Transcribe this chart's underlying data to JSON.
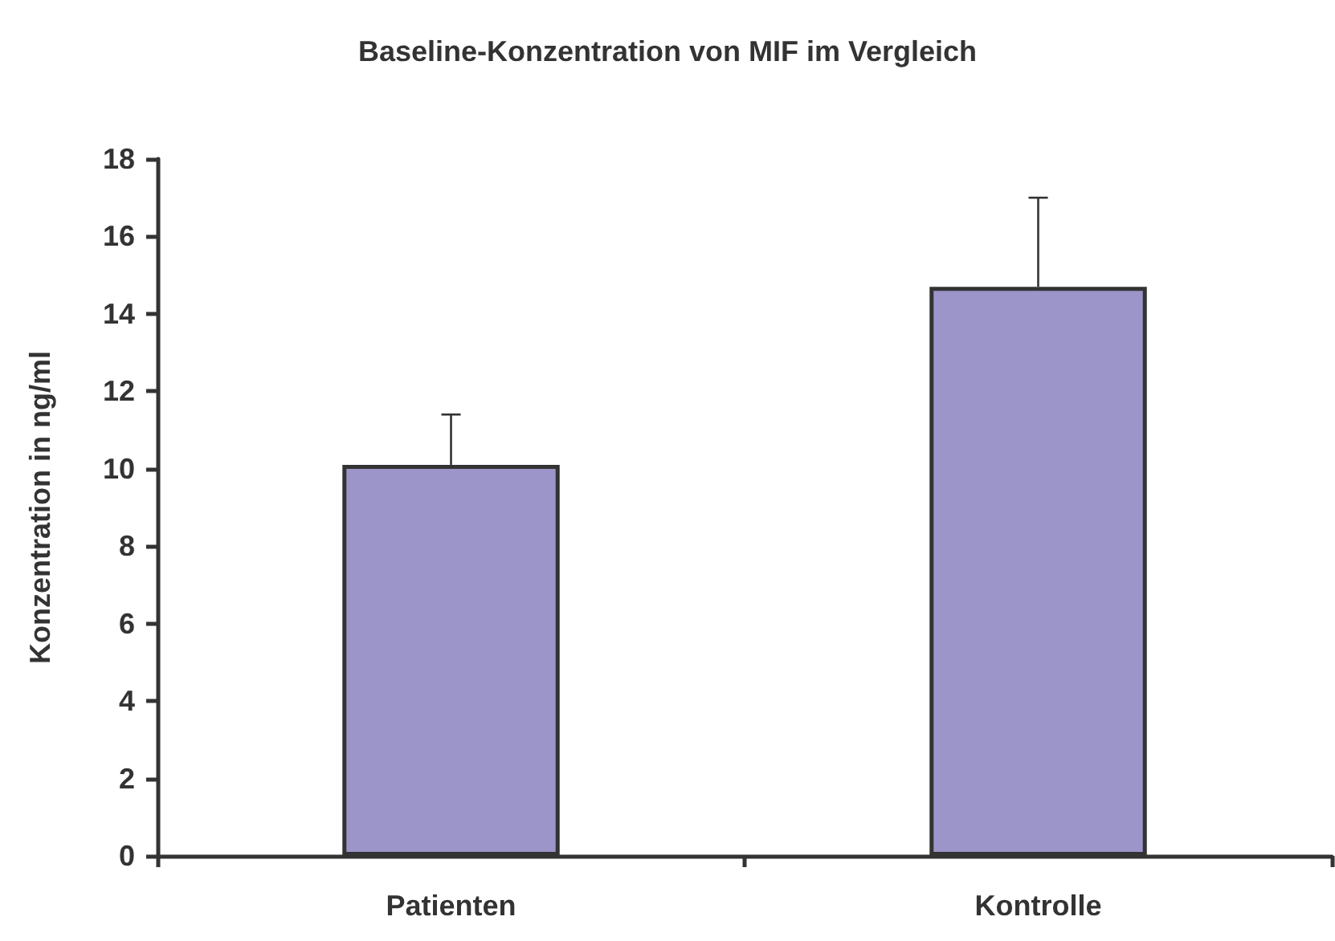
{
  "chart_data": {
    "type": "bar",
    "title": "Baseline-Konzentration von MIF im Vergleich",
    "ylabel": "Konzentration in ng/ml",
    "categories": [
      "Patienten",
      "Kontrolle"
    ],
    "values": [
      10.1,
      14.7
    ],
    "errors": [
      [
        10.1,
        11.4
      ],
      [
        14.7,
        17.0
      ]
    ],
    "color": "#9b95c9",
    "ylim": [
      0,
      18
    ],
    "yticks": [
      0,
      2,
      4,
      6,
      8,
      10,
      12,
      14,
      16,
      18
    ],
    "grid": false
  }
}
